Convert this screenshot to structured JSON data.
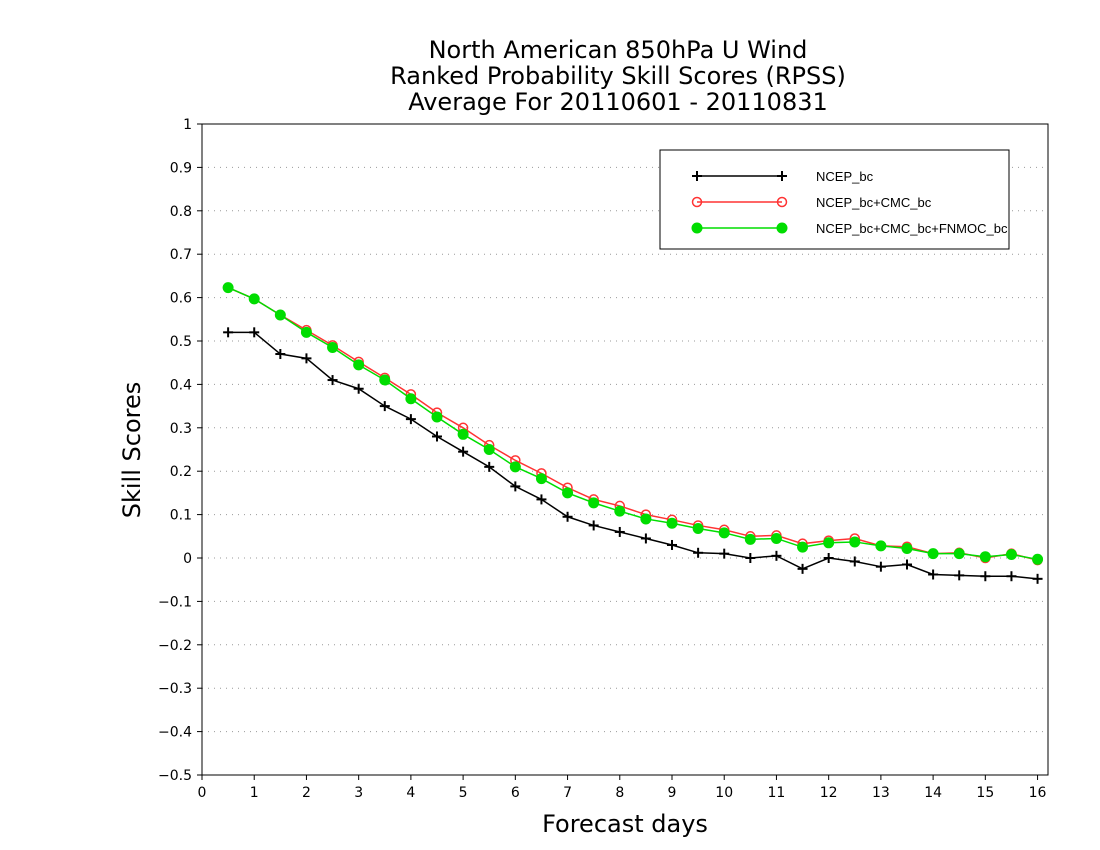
{
  "chart_data": {
    "type": "line",
    "title": [
      "North American 850hPa U Wind",
      "Ranked Probability Skill Scores (RPSS)",
      "Average For 20110601 - 20110831"
    ],
    "xlabel": "Forecast days",
    "ylabel": "Skill Scores",
    "xlim": [
      0,
      16.2
    ],
    "ylim": [
      -0.5,
      1
    ],
    "xticks": [
      "0",
      "1",
      "2",
      "3",
      "4",
      "5",
      "6",
      "7",
      "8",
      "9",
      "10",
      "11",
      "12",
      "13",
      "14",
      "15",
      "16"
    ],
    "yticks": [
      "1",
      "0.9",
      "0.8",
      "0.7",
      "0.6",
      "0.5",
      "0.4",
      "0.3",
      "0.2",
      "0.1",
      "0",
      "−0.1",
      "−0.2",
      "−0.3",
      "−0.4",
      "−0.5"
    ],
    "grid": true,
    "legend_position": "top-right",
    "x": [
      0.5,
      1,
      1.5,
      2,
      2.5,
      3,
      3.5,
      4,
      4.5,
      5,
      5.5,
      6,
      6.5,
      7,
      7.5,
      8,
      8.5,
      9,
      9.5,
      10,
      10.5,
      11,
      11.5,
      12,
      12.5,
      13,
      13.5,
      14,
      14.5,
      15,
      15.5,
      16
    ],
    "series": [
      {
        "name": "NCEP_bc",
        "color": "#000000",
        "marker": "plus",
        "values": [
          0.52,
          0.52,
          0.47,
          0.46,
          0.41,
          0.39,
          0.35,
          0.32,
          0.28,
          0.245,
          0.21,
          0.165,
          0.135,
          0.095,
          0.075,
          0.06,
          0.045,
          0.03,
          0.012,
          0.01,
          0.0,
          0.005,
          -0.025,
          0.0,
          -0.008,
          -0.02,
          -0.015,
          -0.038,
          -0.04,
          -0.042,
          -0.042,
          -0.048
        ]
      },
      {
        "name": "NCEP_bc+CMC_bc",
        "color": "#ff3333",
        "marker": "open-circle",
        "values": [
          0.623,
          0.597,
          0.56,
          0.525,
          0.49,
          0.452,
          0.415,
          0.377,
          0.335,
          0.3,
          0.26,
          0.225,
          0.195,
          0.162,
          0.135,
          0.12,
          0.1,
          0.088,
          0.075,
          0.065,
          0.05,
          0.052,
          0.033,
          0.04,
          0.045,
          0.028,
          0.026,
          0.01,
          0.012,
          0.0,
          0.01,
          -0.005
        ]
      },
      {
        "name": "NCEP_bc+CMC_bc+FNMOC_bc",
        "color": "#00dd00",
        "marker": "filled-circle",
        "values": [
          0.623,
          0.597,
          0.56,
          0.52,
          0.485,
          0.445,
          0.41,
          0.367,
          0.325,
          0.285,
          0.25,
          0.21,
          0.183,
          0.15,
          0.127,
          0.108,
          0.09,
          0.08,
          0.068,
          0.058,
          0.043,
          0.045,
          0.025,
          0.035,
          0.037,
          0.028,
          0.022,
          0.01,
          0.01,
          0.003,
          0.008,
          -0.003
        ]
      }
    ]
  }
}
